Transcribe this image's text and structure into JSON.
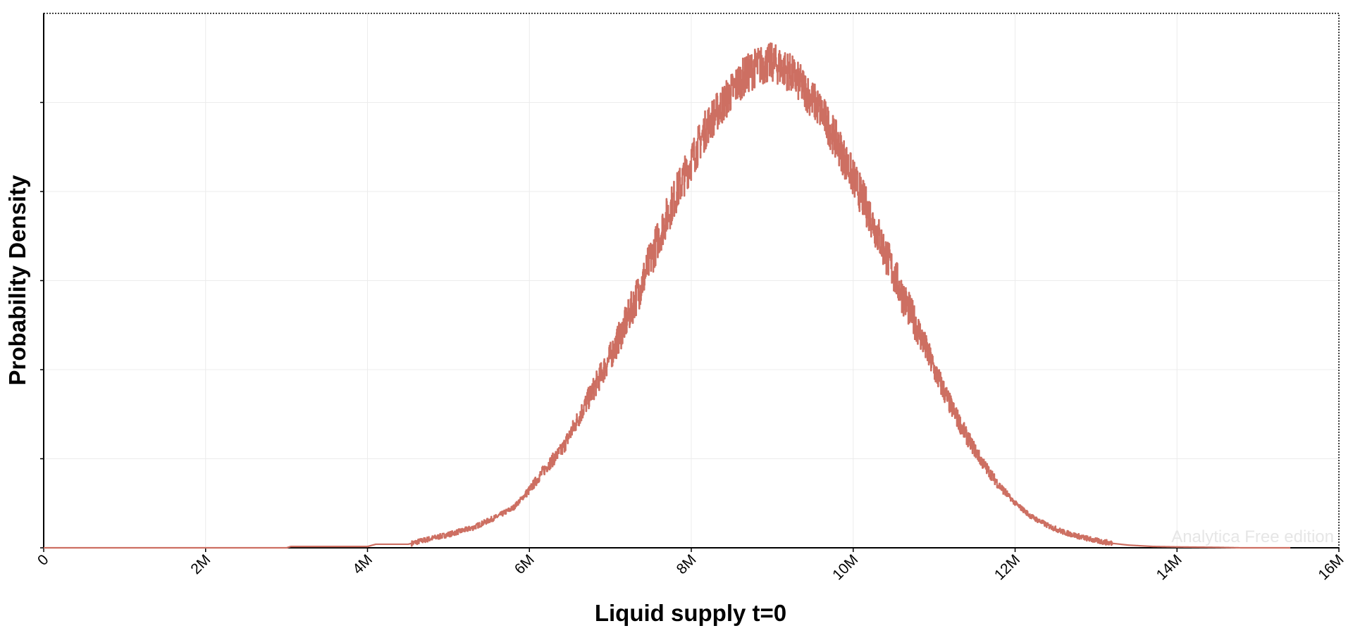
{
  "chart_data": {
    "type": "line",
    "title": "",
    "xlabel": "Liquid supply t=0",
    "ylabel": "Probability Density",
    "xlim": [
      0,
      16000000
    ],
    "ylim": [
      0,
      1.2
    ],
    "x_ticks": [
      0,
      2000000,
      4000000,
      6000000,
      8000000,
      10000000,
      12000000,
      14000000,
      16000000
    ],
    "x_tick_labels": [
      "0",
      "2M",
      "4M",
      "6M",
      "8M",
      "10M",
      "12M",
      "14M",
      "16M"
    ],
    "y_ticks": [
      0,
      0.2,
      0.4,
      0.6,
      0.8,
      1.0,
      1.2
    ],
    "y_tick_labels": [],
    "grid": true,
    "legend": "none",
    "series": [
      {
        "color": "#cd6f62",
        "points": [
          [
            0,
            0.0
          ],
          [
            3000000,
            0.0
          ],
          [
            3050000,
            0.003
          ],
          [
            4000000,
            0.003
          ],
          [
            4100000,
            0.008
          ],
          [
            4500000,
            0.008
          ],
          [
            4650000,
            0.015
          ],
          [
            5000000,
            0.03
          ],
          [
            5300000,
            0.045
          ],
          [
            5600000,
            0.07
          ],
          [
            5800000,
            0.09
          ],
          [
            6000000,
            0.13
          ],
          [
            6200000,
            0.18
          ],
          [
            6400000,
            0.22
          ],
          [
            6600000,
            0.29
          ],
          [
            6800000,
            0.36
          ],
          [
            7000000,
            0.43
          ],
          [
            7200000,
            0.51
          ],
          [
            7400000,
            0.6
          ],
          [
            7600000,
            0.7
          ],
          [
            7800000,
            0.79
          ],
          [
            8000000,
            0.87
          ],
          [
            8200000,
            0.95
          ],
          [
            8400000,
            1.0
          ],
          [
            8600000,
            1.05
          ],
          [
            8800000,
            1.08
          ],
          [
            9000000,
            1.09
          ],
          [
            9200000,
            1.07
          ],
          [
            9400000,
            1.03
          ],
          [
            9600000,
            0.98
          ],
          [
            9800000,
            0.91
          ],
          [
            10000000,
            0.83
          ],
          [
            10200000,
            0.75
          ],
          [
            10400000,
            0.66
          ],
          [
            10600000,
            0.57
          ],
          [
            10800000,
            0.49
          ],
          [
            11000000,
            0.4
          ],
          [
            11200000,
            0.32
          ],
          [
            11400000,
            0.25
          ],
          [
            11600000,
            0.19
          ],
          [
            11800000,
            0.14
          ],
          [
            12000000,
            0.1
          ],
          [
            12200000,
            0.07
          ],
          [
            12400000,
            0.05
          ],
          [
            12600000,
            0.035
          ],
          [
            12800000,
            0.025
          ],
          [
            13000000,
            0.016
          ],
          [
            13200000,
            0.01
          ],
          [
            13400000,
            0.006
          ],
          [
            13700000,
            0.003
          ],
          [
            14000000,
            0.002
          ],
          [
            14500000,
            0.001
          ],
          [
            14800000,
            0.0
          ],
          [
            15400000,
            0.0
          ]
        ]
      }
    ]
  },
  "watermark": "Analytica Free edition"
}
